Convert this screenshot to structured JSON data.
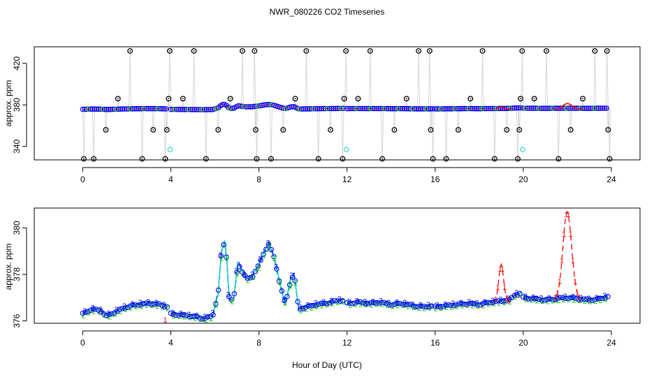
{
  "chart_data": {
    "title": "NWR_080226  CO2 Timeseries",
    "xlabel": "Hour of Day (UTC)",
    "panels": [
      {
        "type": "scatter",
        "ylabel": "approx. ppm",
        "xlim": [
          -2.2,
          25.3
        ],
        "ylim": [
          327,
          436
        ],
        "xticks": [
          0,
          4,
          8,
          12,
          16,
          20,
          24
        ],
        "yticks": [
          340,
          380,
          420
        ],
        "baseline": 376,
        "dropouts": [
          {
            "x": 0.05,
            "y": 328
          },
          {
            "x": 0.5,
            "y": 328
          },
          {
            "x": 1.05,
            "y": 356
          },
          {
            "x": 1.6,
            "y": 386
          },
          {
            "x": 2.15,
            "y": 432
          },
          {
            "x": 2.7,
            "y": 328
          },
          {
            "x": 3.2,
            "y": 356
          },
          {
            "x": 3.75,
            "y": 328
          },
          {
            "x": 3.82,
            "y": 356
          },
          {
            "x": 3.9,
            "y": 386
          },
          {
            "x": 3.95,
            "y": 432
          },
          {
            "x": 4.55,
            "y": 386
          },
          {
            "x": 5.05,
            "y": 432
          },
          {
            "x": 5.6,
            "y": 328
          },
          {
            "x": 6.15,
            "y": 356
          },
          {
            "x": 6.7,
            "y": 386
          },
          {
            "x": 7.25,
            "y": 432
          },
          {
            "x": 7.8,
            "y": 432
          },
          {
            "x": 7.85,
            "y": 356
          },
          {
            "x": 7.9,
            "y": 328
          },
          {
            "x": 8.55,
            "y": 328
          },
          {
            "x": 9.1,
            "y": 356
          },
          {
            "x": 9.65,
            "y": 386
          },
          {
            "x": 10.15,
            "y": 432
          },
          {
            "x": 10.7,
            "y": 328
          },
          {
            "x": 11.25,
            "y": 356
          },
          {
            "x": 11.8,
            "y": 328
          },
          {
            "x": 11.87,
            "y": 386
          },
          {
            "x": 11.95,
            "y": 432
          },
          {
            "x": 12.5,
            "y": 386
          },
          {
            "x": 13.05,
            "y": 432
          },
          {
            "x": 13.6,
            "y": 328
          },
          {
            "x": 14.15,
            "y": 356
          },
          {
            "x": 14.7,
            "y": 386
          },
          {
            "x": 15.25,
            "y": 432
          },
          {
            "x": 15.75,
            "y": 432
          },
          {
            "x": 15.8,
            "y": 356
          },
          {
            "x": 15.9,
            "y": 328
          },
          {
            "x": 16.5,
            "y": 328
          },
          {
            "x": 17.05,
            "y": 356
          },
          {
            "x": 17.6,
            "y": 386
          },
          {
            "x": 18.15,
            "y": 432
          },
          {
            "x": 18.7,
            "y": 328
          },
          {
            "x": 19.25,
            "y": 356
          },
          {
            "x": 19.75,
            "y": 328
          },
          {
            "x": 19.82,
            "y": 356
          },
          {
            "x": 19.88,
            "y": 386
          },
          {
            "x": 19.95,
            "y": 432
          },
          {
            "x": 20.5,
            "y": 386
          },
          {
            "x": 21.05,
            "y": 432
          },
          {
            "x": 21.6,
            "y": 328
          },
          {
            "x": 22.15,
            "y": 356
          },
          {
            "x": 22.7,
            "y": 386
          },
          {
            "x": 23.25,
            "y": 432
          },
          {
            "x": 23.8,
            "y": 432
          },
          {
            "x": 23.85,
            "y": 356
          },
          {
            "x": 23.92,
            "y": 328
          }
        ],
        "flagged": [
          {
            "x": 3.97,
            "y": 337
          },
          {
            "x": 11.97,
            "y": 337
          },
          {
            "x": 19.97,
            "y": 337
          }
        ]
      },
      {
        "type": "line",
        "ylabel": "approx. ppm",
        "xlim": [
          -2.2,
          25.3
        ],
        "ylim": [
          375.9,
          380.85
        ],
        "xticks": [
          0,
          4,
          8,
          12,
          16,
          20,
          24
        ],
        "yticks": [
          376,
          378,
          380
        ],
        "gaps": [
          3.9,
          11.95,
          15.95,
          19.95
        ],
        "anchors": [
          [
            0,
            376.3
          ],
          [
            0.4,
            376.5
          ],
          [
            0.8,
            376.45
          ],
          [
            1.1,
            376.2
          ],
          [
            1.5,
            376.4
          ],
          [
            2.0,
            376.6
          ],
          [
            2.5,
            376.7
          ],
          [
            3.0,
            376.75
          ],
          [
            3.5,
            376.7
          ],
          [
            3.85,
            376.6
          ],
          [
            4.0,
            376.3
          ],
          [
            4.5,
            376.25
          ],
          [
            5.0,
            376.2
          ],
          [
            5.5,
            376.1
          ],
          [
            5.9,
            376.2
          ],
          [
            6.15,
            377.2
          ],
          [
            6.3,
            379.0
          ],
          [
            6.45,
            379.4
          ],
          [
            6.55,
            378.5
          ],
          [
            6.65,
            376.9
          ],
          [
            6.85,
            376.9
          ],
          [
            7.05,
            378.5
          ],
          [
            7.25,
            378.1
          ],
          [
            7.45,
            377.8
          ],
          [
            7.7,
            377.9
          ],
          [
            8.0,
            378.4
          ],
          [
            8.25,
            379.0
          ],
          [
            8.45,
            379.3
          ],
          [
            8.7,
            378.7
          ],
          [
            8.95,
            377.6
          ],
          [
            9.2,
            376.7
          ],
          [
            9.45,
            377.8
          ],
          [
            9.6,
            378.0
          ],
          [
            9.8,
            376.5
          ],
          [
            10.2,
            376.6
          ],
          [
            10.6,
            376.7
          ],
          [
            11.0,
            376.75
          ],
          [
            11.5,
            376.85
          ],
          [
            11.9,
            376.9
          ],
          [
            12.0,
            376.75
          ],
          [
            12.5,
            376.8
          ],
          [
            13.0,
            376.75
          ],
          [
            13.5,
            376.8
          ],
          [
            14.0,
            376.7
          ],
          [
            14.5,
            376.75
          ],
          [
            15.0,
            376.65
          ],
          [
            15.5,
            376.6
          ],
          [
            15.9,
            376.65
          ],
          [
            16.0,
            376.6
          ],
          [
            16.5,
            376.65
          ],
          [
            17.0,
            376.7
          ],
          [
            17.5,
            376.75
          ],
          [
            18.0,
            376.7
          ],
          [
            18.5,
            376.8
          ],
          [
            19.0,
            376.85
          ],
          [
            19.4,
            376.9
          ],
          [
            19.6,
            377.1
          ],
          [
            19.9,
            377.2
          ],
          [
            20.0,
            377.0
          ],
          [
            20.5,
            376.95
          ],
          [
            21.0,
            376.9
          ],
          [
            21.5,
            376.95
          ],
          [
            22.0,
            377.0
          ],
          [
            22.5,
            376.95
          ],
          [
            23.0,
            376.9
          ],
          [
            23.5,
            376.95
          ],
          [
            23.85,
            377.05
          ]
        ],
        "red_excursions": [
          {
            "x0": 18.75,
            "x1": 19.4,
            "peak_x": 19.0,
            "peak": 378.4
          },
          {
            "x0": 21.45,
            "x1": 22.6,
            "peak_x": 22.0,
            "peak": 380.7
          }
        ],
        "red_outlier": {
          "x": 3.75,
          "y": 376.05
        },
        "series": [
          {
            "name": "1",
            "color": "#ff0000",
            "dash": "8,5"
          },
          {
            "name": "2",
            "color": "#00c000",
            "dash": "4,4"
          },
          {
            "name": "3",
            "color": "#0000ff",
            "dash": "10,4"
          },
          {
            "name": "4",
            "color": "#00dddd",
            "dash": ""
          }
        ]
      }
    ]
  }
}
